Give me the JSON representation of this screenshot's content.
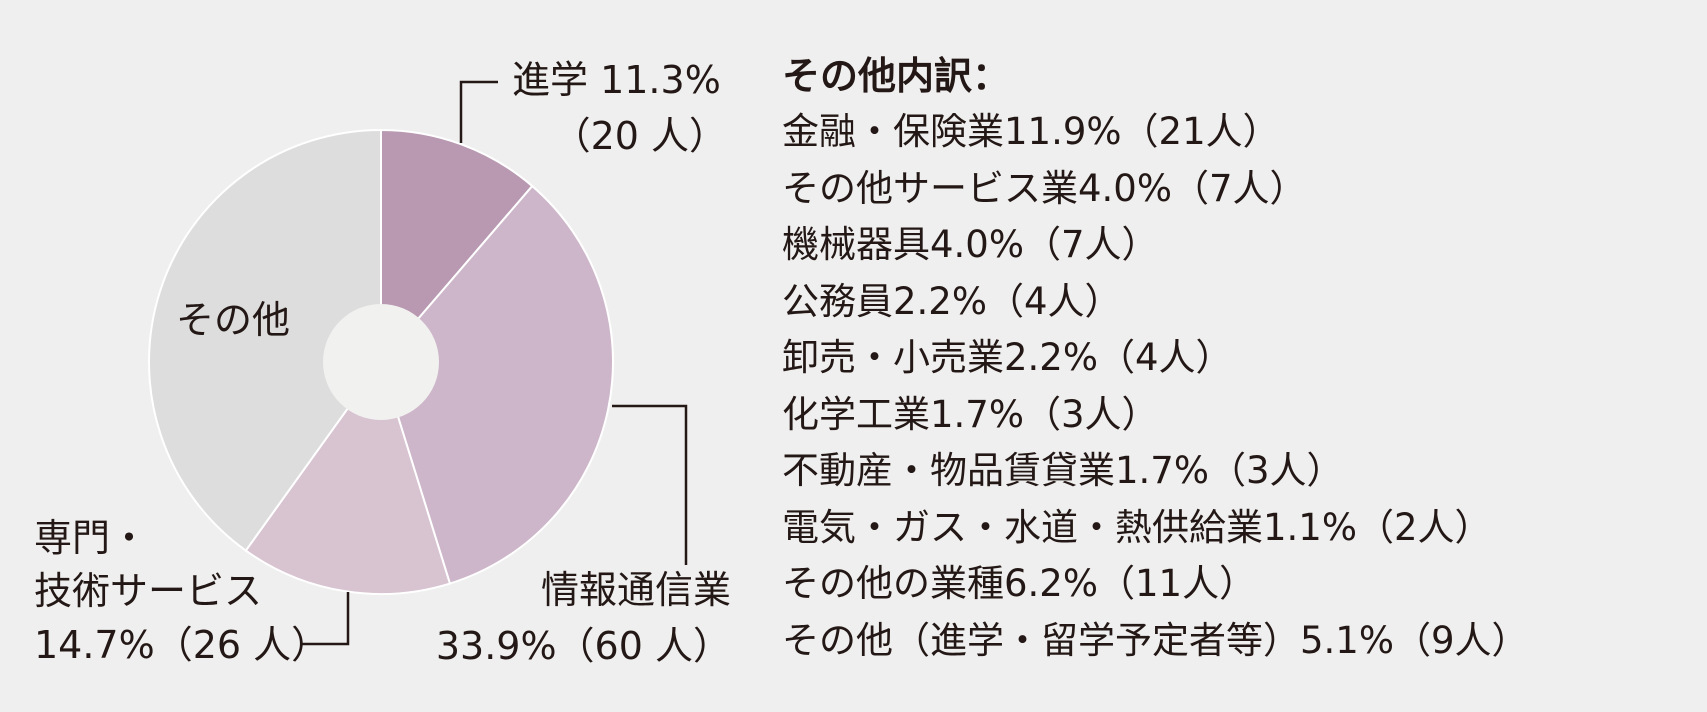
{
  "chart_data": {
    "type": "pie",
    "series": [
      {
        "label": "進学",
        "percent": 11.3,
        "count_text": "（20 人）",
        "percent_text": "11.3%",
        "color": "#b899b1"
      },
      {
        "label": "情報通信業",
        "percent": 33.9,
        "count_text": "（60 人）",
        "percent_text": "33.9%",
        "color": "#cdb6c9"
      },
      {
        "label": "専門・技術サービス",
        "percent": 14.7,
        "count_text": "（26 人）",
        "percent_text": "14.7%",
        "color": "#d8c3d1"
      },
      {
        "label": "その他",
        "percent": 40.1,
        "color": "#dcdddc"
      }
    ],
    "labels": {
      "shingaku_line1": "進学 11.3%",
      "shingaku_line2": "（20 人）",
      "joho_line1": "情報通信業",
      "joho_line2": "33.9%（60 人）",
      "senmon_line1": "専門・",
      "senmon_line2": "技術サービス",
      "senmon_line3": "14.7%（26 人）",
      "sonota": "その他"
    },
    "donut_hole_color": "#f1f1ef"
  },
  "breakdown": {
    "title": "その他内訳：",
    "items": [
      "金融・保険業11.9%（21人）",
      "その他サービス業4.0%（7人）",
      "機械器具4.0%（7人）",
      "公務員2.2%（4人）",
      "卸売・小売業2.2%（4人）",
      "化学工業1.7%（3人）",
      "不動産・物品賃貸業1.7%（3人）",
      "電気・ガス・水道・熱供給業1.1%（2人）",
      "その他の業種6.2%（11人）",
      "その他（進学・留学予定者等）5.1%（9人）"
    ]
  }
}
